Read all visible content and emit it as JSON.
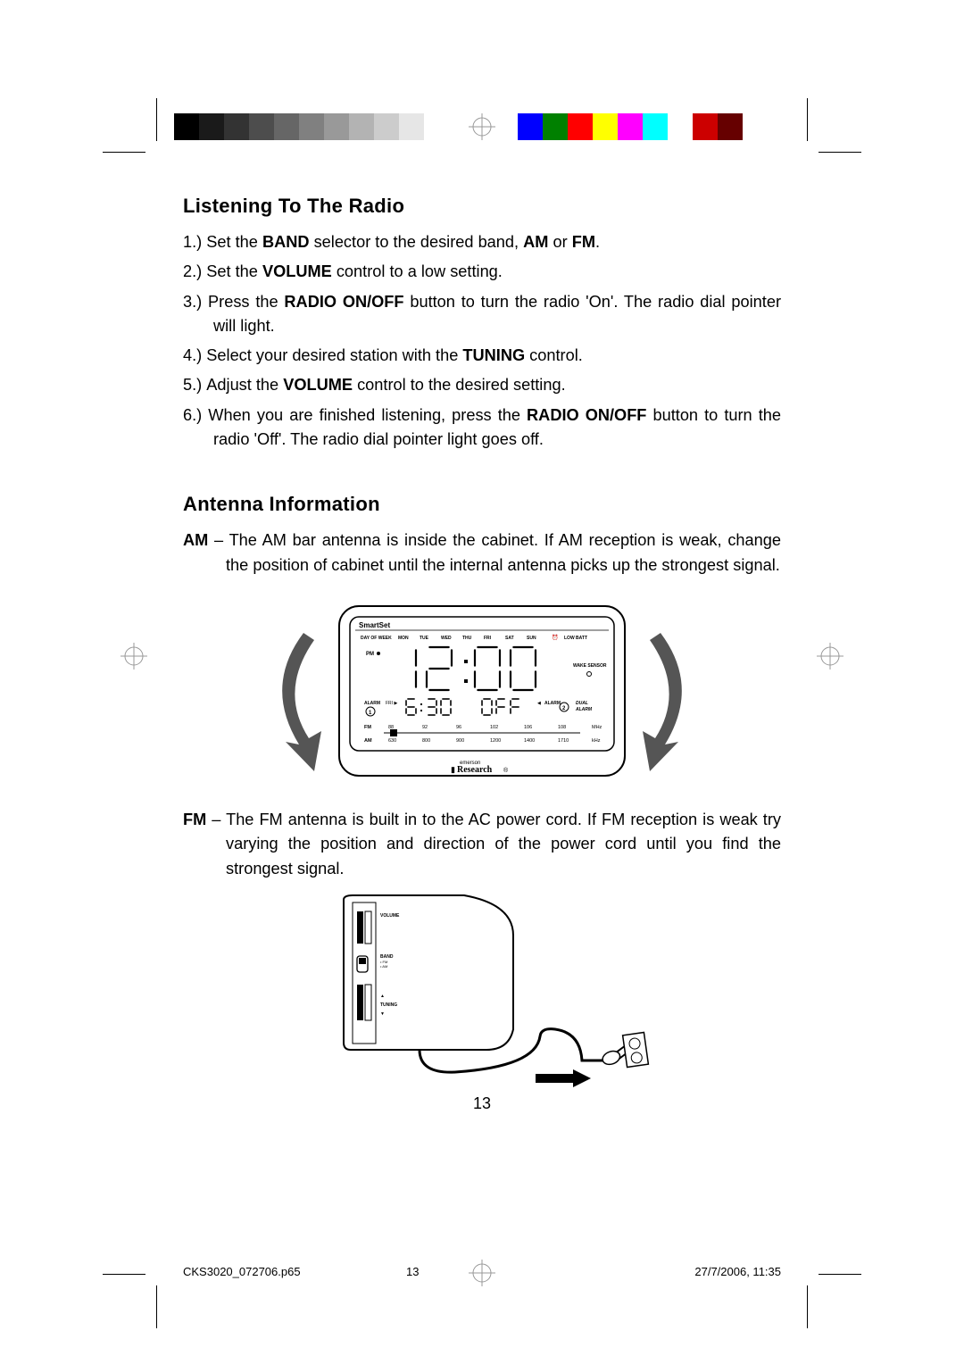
{
  "calibration": {
    "grayscale": [
      "#000000",
      "#1a1a1a",
      "#333333",
      "#4d4d4d",
      "#666666",
      "#808080",
      "#999999",
      "#b3b3b3",
      "#cccccc",
      "#e6e6e6",
      "#ffffff"
    ],
    "grayscale_swatch_width": 28,
    "colors": [
      "#00ffff",
      "#0000ff",
      "#008000",
      "#ffff00",
      "#ff00ff",
      "#00ffff",
      "#ffffff",
      "#ff0000",
      "#800000"
    ],
    "colors_swatch_width": 28
  },
  "calibration_right": {
    "colors": [
      "#0000ff",
      "#008000",
      "#ff0000",
      "#ffff00",
      "#ff00ff",
      "#00ffff",
      "#ffffff",
      "#cc0000",
      "#660000"
    ],
    "swatch_width": 28
  },
  "section1": {
    "title": "Listening To The Radio",
    "items": [
      {
        "n": "1.)",
        "pre": "Set the ",
        "b1": "BAND",
        "mid": " selector to the desired band, ",
        "b2": "AM",
        "mid2": " or ",
        "b3": "FM",
        "post": "."
      },
      {
        "n": "2.)",
        "pre": "Set the ",
        "b1": "VOLUME",
        "post": " control to a low setting."
      },
      {
        "n": "3.)",
        "pre": "Press the ",
        "b1": "RADIO ON/OFF",
        "post": " button to turn the radio 'On'.  The radio dial pointer will light."
      },
      {
        "n": "4.)",
        "pre": "Select your desired station with the ",
        "b1": "TUNING",
        "post": " control."
      },
      {
        "n": "5.)",
        "pre": "Adjust the ",
        "b1": "VOLUME",
        "post": " control to the desired setting."
      },
      {
        "n": "6.)",
        "pre": "When you are finished listening, press the ",
        "b1": "RADIO ON/OFF",
        "post": " button to turn the radio 'Off'. The radio dial pointer light goes off."
      }
    ]
  },
  "section2": {
    "title": "Antenna Information",
    "am": {
      "label": "AM",
      "text": " – The AM bar antenna is inside the cabinet. If AM reception is weak, change the position of cabinet until the internal antenna picks up the strongest signal."
    },
    "fm": {
      "label": "FM",
      "text": " – The FM antenna is built in to the AC power cord. If FM reception is weak try varying the position and direction of the power cord until you find the strongest signal."
    }
  },
  "clock_figure": {
    "brand_top": "SmartSet",
    "days": [
      "DAY OF WEEK",
      "MON",
      "TUE",
      "WED",
      "THU",
      "FRI",
      "SAT",
      "SUN"
    ],
    "icons_right": [
      "LOW BATT"
    ],
    "pm": "PM",
    "main_time": "12:00",
    "wake_sensor": "WAKE SENSOR",
    "alarm1_label": "ALARM",
    "alarm1_num": "1",
    "sub_left": "6:30",
    "sub_right": "OFF",
    "alarm2_label": "ALARM",
    "alarm2_num": "2",
    "dual": "DUAL\nALARM",
    "fm_row": {
      "label": "FM",
      "vals": [
        "88",
        "92",
        "96",
        "102",
        "106",
        "108"
      ],
      "unit": "MHz"
    },
    "am_row": {
      "label": "AM",
      "vals": [
        "630",
        "800",
        "900",
        "1200",
        "1400",
        "1710"
      ],
      "unit": "kHz"
    },
    "brand_bottom": "Research",
    "brand_bottom_prefix": "emerson"
  },
  "side_figure": {
    "volume": "VOLUME",
    "band": "BAND",
    "tuning": "TUNING"
  },
  "page_number": "13",
  "footer": {
    "file": "CKS3020_072706.p65",
    "page": "13",
    "date": "27/7/2006, 11:35"
  }
}
